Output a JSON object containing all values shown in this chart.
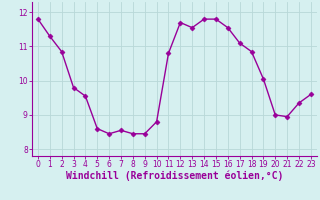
{
  "x": [
    0,
    1,
    2,
    3,
    4,
    5,
    6,
    7,
    8,
    9,
    10,
    11,
    12,
    13,
    14,
    15,
    16,
    17,
    18,
    19,
    20,
    21,
    22,
    23
  ],
  "y": [
    11.8,
    11.3,
    10.85,
    9.8,
    9.55,
    8.6,
    8.45,
    8.55,
    8.45,
    8.45,
    8.8,
    10.8,
    11.7,
    11.55,
    11.8,
    11.8,
    11.55,
    11.1,
    10.85,
    10.05,
    9.0,
    8.95,
    9.35,
    9.6
  ],
  "line_color": "#990099",
  "marker": "D",
  "marker_size": 2.5,
  "linewidth": 1.0,
  "bg_color": "#d6f0f0",
  "grid_color": "#b8d8d8",
  "xlabel": "Windchill (Refroidissement éolien,°C)",
  "xlabel_color": "#990099",
  "tick_color": "#990099",
  "axis_color": "#990099",
  "ylim": [
    7.8,
    12.3
  ],
  "xlim": [
    -0.5,
    23.5
  ],
  "yticks": [
    8,
    9,
    10,
    11,
    12
  ],
  "xticks": [
    0,
    1,
    2,
    3,
    4,
    5,
    6,
    7,
    8,
    9,
    10,
    11,
    12,
    13,
    14,
    15,
    16,
    17,
    18,
    19,
    20,
    21,
    22,
    23
  ],
  "tick_fontsize": 5.5,
  "xlabel_fontsize": 7.0
}
